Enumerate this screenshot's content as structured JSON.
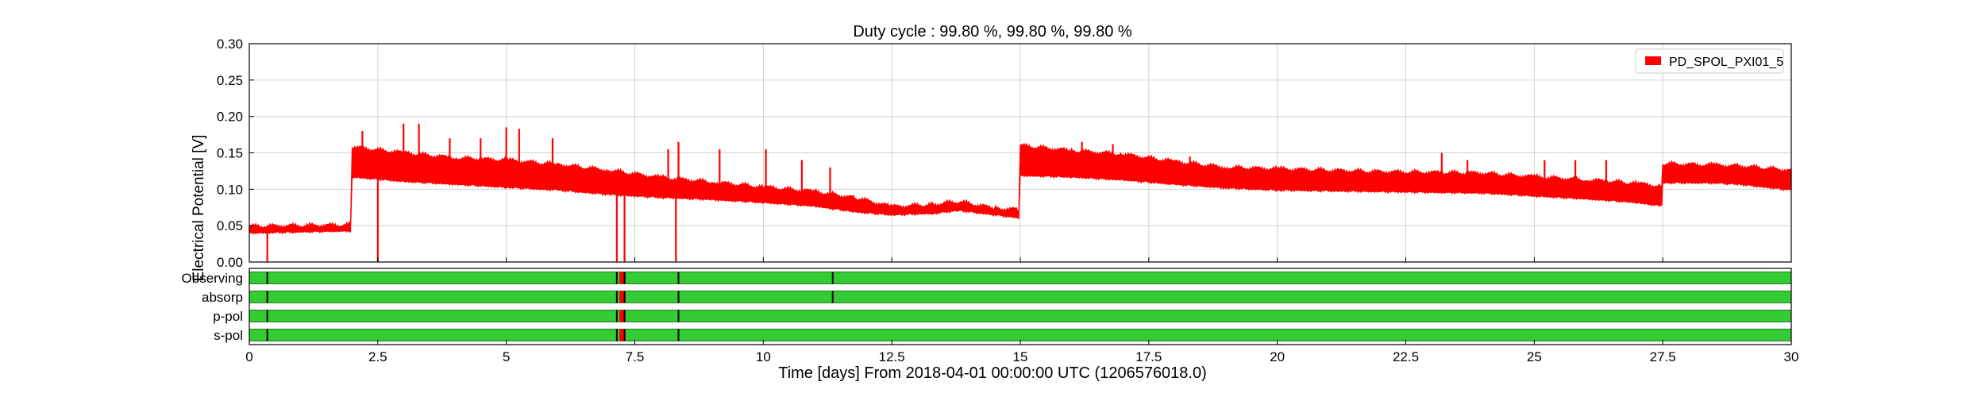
{
  "chart_data": {
    "type": "line",
    "title": "Duty cycle : 99.80 %, 99.80 %, 99.80 %",
    "xlabel": "Time [days] From 2018-04-01 00:00:00 UTC (1206576018.0)",
    "ylabel": "Electrical Potential [V]",
    "xlim": [
      0,
      30
    ],
    "ylim": [
      0,
      0.3
    ],
    "grid": true,
    "legend_position": "top-right",
    "colors": {
      "series": "#ff0000",
      "segment_on": "#33cc33",
      "segment_border": "#2a7a2a",
      "gap_marker": "#000000",
      "gap_highlight": "#ff0000"
    },
    "xticks": [
      0,
      2.5,
      5,
      7.5,
      10,
      12.5,
      15,
      17.5,
      20,
      22.5,
      25,
      27.5,
      30
    ],
    "xtick_labels": [
      "0",
      "2.5",
      "5",
      "7.5",
      "10",
      "12.5",
      "15",
      "17.5",
      "20",
      "22.5",
      "25",
      "27.5",
      "30"
    ],
    "yticks": [
      0,
      0.05,
      0.1,
      0.15,
      0.2,
      0.25,
      0.3
    ],
    "ytick_labels": [
      "0.00",
      "0.05",
      "0.10",
      "0.15",
      "0.20",
      "0.25",
      "0.30"
    ],
    "series": [
      {
        "name": "PD_SPOL_PXI01_5",
        "envelope": [
          {
            "x": 0.0,
            "lo": 0.041,
            "hi": 0.049
          },
          {
            "x": 1.97,
            "lo": 0.044,
            "hi": 0.051
          },
          {
            "x": 2.0,
            "lo": 0.118,
            "hi": 0.158
          },
          {
            "x": 3.0,
            "lo": 0.112,
            "hi": 0.15
          },
          {
            "x": 4.0,
            "lo": 0.108,
            "hi": 0.143
          },
          {
            "x": 5.0,
            "lo": 0.104,
            "hi": 0.14
          },
          {
            "x": 6.0,
            "lo": 0.1,
            "hi": 0.134
          },
          {
            "x": 7.0,
            "lo": 0.094,
            "hi": 0.126
          },
          {
            "x": 8.0,
            "lo": 0.09,
            "hi": 0.116
          },
          {
            "x": 9.0,
            "lo": 0.087,
            "hi": 0.11
          },
          {
            "x": 10.0,
            "lo": 0.083,
            "hi": 0.103
          },
          {
            "x": 11.0,
            "lo": 0.078,
            "hi": 0.097
          },
          {
            "x": 11.8,
            "lo": 0.07,
            "hi": 0.088
          },
          {
            "x": 12.5,
            "lo": 0.066,
            "hi": 0.076
          },
          {
            "x": 13.3,
            "lo": 0.068,
            "hi": 0.079
          },
          {
            "x": 13.8,
            "lo": 0.072,
            "hi": 0.083
          },
          {
            "x": 14.5,
            "lo": 0.066,
            "hi": 0.074
          },
          {
            "x": 14.97,
            "lo": 0.062,
            "hi": 0.072
          },
          {
            "x": 15.0,
            "lo": 0.12,
            "hi": 0.16
          },
          {
            "x": 16.0,
            "lo": 0.118,
            "hi": 0.153
          },
          {
            "x": 17.0,
            "lo": 0.114,
            "hi": 0.148
          },
          {
            "x": 18.0,
            "lo": 0.108,
            "hi": 0.138
          },
          {
            "x": 19.0,
            "lo": 0.103,
            "hi": 0.13
          },
          {
            "x": 20.0,
            "lo": 0.1,
            "hi": 0.128
          },
          {
            "x": 22.0,
            "lo": 0.098,
            "hi": 0.124
          },
          {
            "x": 24.0,
            "lo": 0.096,
            "hi": 0.122
          },
          {
            "x": 25.0,
            "lo": 0.092,
            "hi": 0.117
          },
          {
            "x": 26.0,
            "lo": 0.088,
            "hi": 0.113
          },
          {
            "x": 27.0,
            "lo": 0.083,
            "hi": 0.108
          },
          {
            "x": 27.48,
            "lo": 0.078,
            "hi": 0.104
          },
          {
            "x": 27.5,
            "lo": 0.11,
            "hi": 0.135
          },
          {
            "x": 28.5,
            "lo": 0.11,
            "hi": 0.133
          },
          {
            "x": 29.0,
            "lo": 0.108,
            "hi": 0.132
          },
          {
            "x": 30.0,
            "lo": 0.1,
            "hi": 0.126
          }
        ],
        "spikes": [
          {
            "x": 0.35,
            "y": 0.0
          },
          {
            "x": 2.2,
            "y": 0.18
          },
          {
            "x": 2.5,
            "y": 0.0
          },
          {
            "x": 3.0,
            "y": 0.19
          },
          {
            "x": 3.3,
            "y": 0.19
          },
          {
            "x": 3.9,
            "y": 0.17
          },
          {
            "x": 4.5,
            "y": 0.17
          },
          {
            "x": 5.0,
            "y": 0.185
          },
          {
            "x": 5.25,
            "y": 0.183
          },
          {
            "x": 5.9,
            "y": 0.17
          },
          {
            "x": 7.15,
            "y": 0.0
          },
          {
            "x": 7.3,
            "y": 0.0
          },
          {
            "x": 8.3,
            "y": 0.0
          },
          {
            "x": 8.15,
            "y": 0.155
          },
          {
            "x": 8.35,
            "y": 0.165
          },
          {
            "x": 9.15,
            "y": 0.155
          },
          {
            "x": 10.05,
            "y": 0.155
          },
          {
            "x": 10.75,
            "y": 0.14
          },
          {
            "x": 11.3,
            "y": 0.13
          },
          {
            "x": 16.2,
            "y": 0.165
          },
          {
            "x": 16.8,
            "y": 0.162
          },
          {
            "x": 18.3,
            "y": 0.145
          },
          {
            "x": 23.2,
            "y": 0.15
          },
          {
            "x": 23.7,
            "y": 0.14
          },
          {
            "x": 25.2,
            "y": 0.14
          },
          {
            "x": 25.8,
            "y": 0.14
          },
          {
            "x": 26.4,
            "y": 0.14
          }
        ]
      }
    ],
    "segments": [
      {
        "name": "Observing",
        "gaps": [
          0.35,
          7.15,
          7.3,
          8.35,
          11.35
        ],
        "highlight": [
          7.2,
          7.32
        ]
      },
      {
        "name": "absorp",
        "gaps": [
          0.35,
          7.15,
          7.3,
          8.35,
          11.35
        ],
        "highlight": [
          7.2,
          7.32
        ]
      },
      {
        "name": "p-pol",
        "gaps": [
          0.35,
          7.15,
          7.3,
          8.35
        ],
        "highlight": [
          7.2,
          7.32
        ]
      },
      {
        "name": "s-pol",
        "gaps": [
          0.35,
          7.15,
          7.3,
          8.35
        ],
        "highlight": [
          7.2,
          7.32
        ]
      }
    ]
  }
}
